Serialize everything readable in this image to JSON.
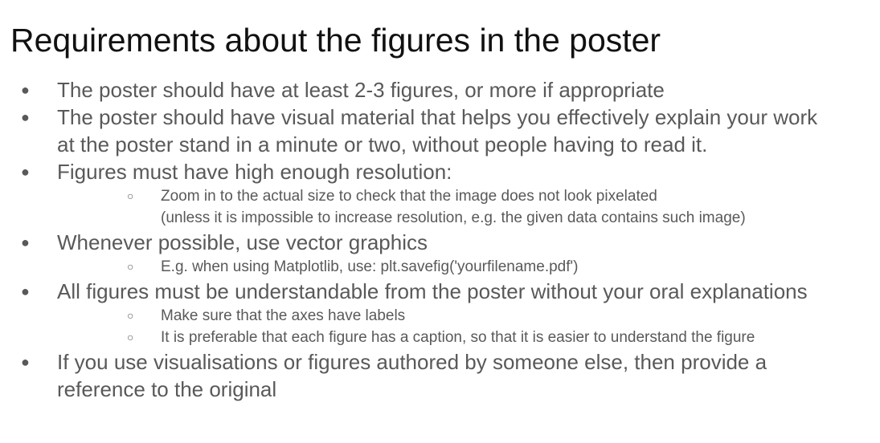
{
  "title": "Requirements about the figures in the poster",
  "bullets": [
    {
      "lines": [
        "The poster should have at least 2-3 figures, or more if appropriate"
      ]
    },
    {
      "lines": [
        "The poster should have visual material that helps you effectively explain your work",
        "at the poster stand in a minute or two, without people having to read it."
      ]
    },
    {
      "lines": [
        "Figures must have high enough resolution:"
      ],
      "sub": [
        {
          "lines": [
            "Zoom in to the actual size to check that the image does not look pixelated",
            "(unless it is impossible to increase resolution, e.g. the given data contains such image)"
          ]
        }
      ]
    },
    {
      "lines": [
        "Whenever possible, use vector graphics"
      ],
      "sub": [
        {
          "lines": [
            "E.g. when using Matplotlib, use: plt.savefig('yourfilename.pdf')"
          ]
        }
      ]
    },
    {
      "lines": [
        "All figures must be understandable from the poster without your oral explanations"
      ],
      "sub": [
        {
          "lines": [
            "Make sure that the axes have labels"
          ]
        },
        {
          "lines": [
            "It is preferable that each figure has a caption, so that it is easier to understand the figure"
          ]
        }
      ]
    },
    {
      "lines": [
        "If you use visualisations or figures authored by someone else, then provide a",
        "reference to the original"
      ]
    }
  ]
}
